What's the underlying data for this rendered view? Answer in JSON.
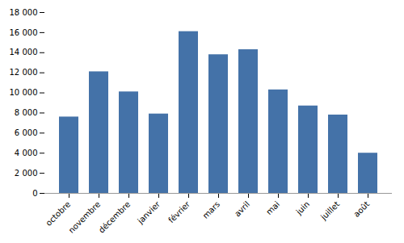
{
  "chart_data": {
    "type": "bar",
    "categories": [
      "octobre",
      "novembre",
      "décembre",
      "janvier",
      "février",
      "mars",
      "avril",
      "mai",
      "juin",
      "juillet",
      "août"
    ],
    "values": [
      7600,
      12100,
      10100,
      7900,
      16100,
      13800,
      14300,
      10300,
      8700,
      7800,
      4000
    ],
    "color": "#4472a8",
    "ylim": [
      0,
      18000
    ],
    "yticks": [
      0,
      {
        "value": 2000,
        "label": "2 000"
      },
      {
        "value": 4000,
        "label": "4 000"
      },
      {
        "value": 6000,
        "label": "6 000"
      },
      {
        "value": 8000,
        "label": "8 000"
      },
      {
        "value": 10000,
        "label": "10 000"
      },
      {
        "value": 12000,
        "label": "12 000"
      },
      {
        "value": 14000,
        "label": "14 000"
      },
      {
        "value": 16000,
        "label": "16 000"
      },
      {
        "value": 18000,
        "label": "18 000"
      }
    ],
    "grid": false
  }
}
